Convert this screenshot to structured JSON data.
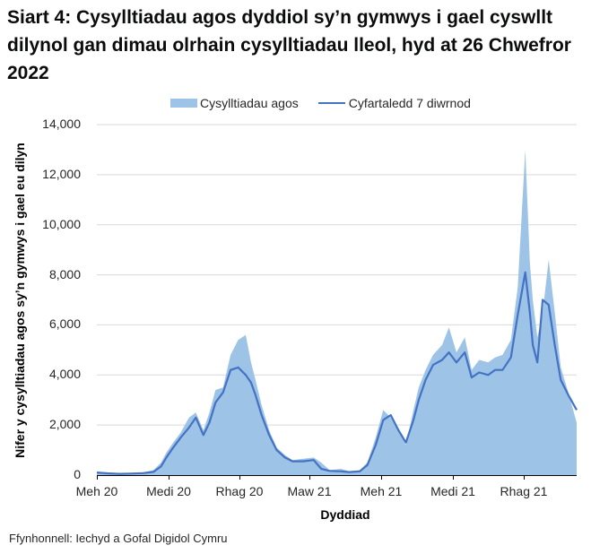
{
  "title": "Siart 4: Cysylltiadau agos dyddiol sy’n gymwys i gael cyswllt dilynol gan dimau olrhain cysylltiadau lleol, hyd at 26 Chwefror 2022",
  "legend": {
    "bars_label": "Cysylltiadau agos",
    "line_label": "Cyfartaledd 7 diwrnod"
  },
  "axes": {
    "y_label": "Nifer y cysylltiadau agos sy’n gymwys i gael eu dilyn",
    "x_label": "Dyddiad",
    "y_ticks": [
      "0",
      "2,000",
      "4,000",
      "6,000",
      "8,000",
      "10,000",
      "12,000",
      "14,000"
    ],
    "x_ticks": [
      "Meh 20",
      "Medi 20",
      "Rhag 20",
      "Maw 21",
      "Meh 21",
      "Medi 21",
      "Rhag 21"
    ]
  },
  "source": "Ffynhonnell: Iechyd a Gofal Digidol Cymru",
  "colors": {
    "bars": "#9dc3e6",
    "line": "#4472c4",
    "grid": "#d9d9d9",
    "axis": "#000000"
  },
  "chart_data": {
    "type": "area",
    "title": "Siart 4: Cysylltiadau agos dyddiol sy’n gymwys i gael cyswllt dilynol gan dimau olrhain cysylltiadau lleol, hyd at 26 Chwefror 2022",
    "xlabel": "Dyddiad",
    "ylabel": "Nifer y cysylltiadau agos sy’n gymwys i gael eu dilyn",
    "ylim": [
      0,
      14000
    ],
    "grid": true,
    "legend_position": "top",
    "x_tick_labels": [
      "Meh 20",
      "Medi 20",
      "Rhag 20",
      "Maw 21",
      "Meh 21",
      "Medi 21",
      "Rhag 21"
    ],
    "x_start": "2020-06-01",
    "x_end": "2022-02-26",
    "x": [
      "2020-06-01",
      "2020-06-15",
      "2020-07-01",
      "2020-07-15",
      "2020-08-01",
      "2020-08-15",
      "2020-08-25",
      "2020-09-01",
      "2020-09-10",
      "2020-09-20",
      "2020-10-01",
      "2020-10-10",
      "2020-10-20",
      "2020-10-28",
      "2020-11-05",
      "2020-11-15",
      "2020-11-25",
      "2020-12-05",
      "2020-12-15",
      "2020-12-22",
      "2020-12-28",
      "2021-01-05",
      "2021-01-15",
      "2021-01-25",
      "2021-02-05",
      "2021-02-15",
      "2021-03-01",
      "2021-03-15",
      "2021-03-25",
      "2021-04-05",
      "2021-04-20",
      "2021-05-01",
      "2021-05-15",
      "2021-05-25",
      "2021-06-05",
      "2021-06-15",
      "2021-06-25",
      "2021-07-05",
      "2021-07-15",
      "2021-07-25",
      "2021-08-01",
      "2021-08-10",
      "2021-08-20",
      "2021-09-01",
      "2021-09-10",
      "2021-09-20",
      "2021-10-01",
      "2021-10-10",
      "2021-10-20",
      "2021-11-01",
      "2021-11-10",
      "2021-11-20",
      "2021-12-01",
      "2021-12-10",
      "2021-12-20",
      "2021-12-26",
      "2021-12-30",
      "2022-01-05",
      "2022-01-12",
      "2022-01-20",
      "2022-01-28",
      "2022-02-05",
      "2022-02-15",
      "2022-02-26"
    ],
    "series": [
      {
        "name": "Cysylltiadau agos",
        "type": "bar",
        "values": [
          150,
          100,
          60,
          80,
          100,
          200,
          500,
          900,
          1300,
          1700,
          2300,
          2500,
          1800,
          2500,
          3400,
          3500,
          4800,
          5400,
          5600,
          4500,
          3800,
          2800,
          1800,
          1100,
          800,
          600,
          650,
          700,
          500,
          200,
          250,
          150,
          200,
          500,
          1500,
          2600,
          2300,
          1800,
          1200,
          2600,
          3500,
          4200,
          4800,
          5200,
          5900,
          4900,
          5500,
          4200,
          4600,
          4500,
          4700,
          4800,
          5400,
          7500,
          13000,
          8500,
          7000,
          5500,
          6500,
          8600,
          6500,
          4300,
          3300,
          2100
        ]
      },
      {
        "name": "Cyfartaledd 7 diwrnod",
        "type": "line",
        "values": [
          100,
          70,
          50,
          60,
          80,
          130,
          350,
          700,
          1100,
          1500,
          1900,
          2300,
          1600,
          2100,
          2900,
          3300,
          4200,
          4300,
          4000,
          3700,
          3200,
          2400,
          1600,
          1000,
          700,
          550,
          550,
          600,
          250,
          170,
          150,
          120,
          150,
          400,
          1200,
          2200,
          2400,
          1800,
          1300,
          2200,
          3000,
          3800,
          4400,
          4600,
          4900,
          4500,
          4900,
          3900,
          4100,
          4000,
          4200,
          4200,
          4700,
          6400,
          8100,
          6500,
          5200,
          4500,
          7000,
          6800,
          5200,
          3800,
          3200,
          2600
        ]
      }
    ]
  }
}
